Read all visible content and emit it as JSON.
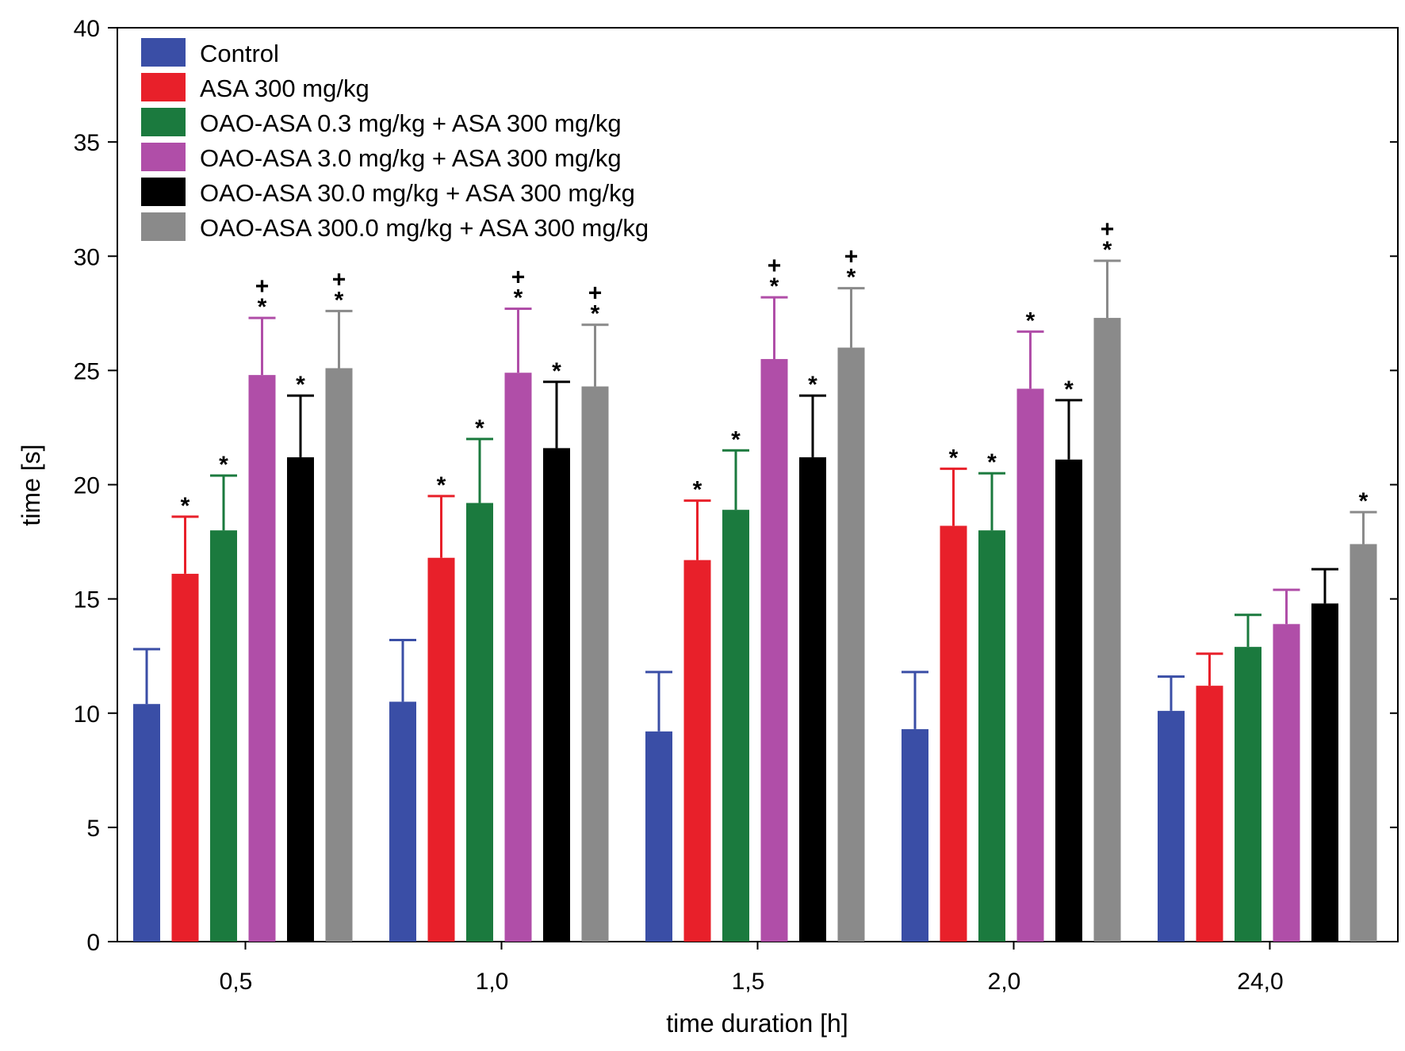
{
  "chart_data": {
    "type": "bar",
    "title": "",
    "xlabel": "time duration [h]",
    "ylabel": "time [s]",
    "ylim": [
      0,
      40
    ],
    "yticks": [
      0,
      5,
      10,
      15,
      20,
      25,
      30,
      35,
      40
    ],
    "categories": [
      "0,5",
      "1,0",
      "1,5",
      "2,0",
      "24,0"
    ],
    "legend_position": "top-left",
    "series": [
      {
        "name": "Control",
        "color": "#3a4ea6",
        "values": [
          10.4,
          10.5,
          9.2,
          9.3,
          10.1
        ],
        "errors": [
          2.4,
          2.7,
          2.6,
          2.5,
          1.5
        ],
        "markers": [
          "",
          "",
          "",
          "",
          ""
        ]
      },
      {
        "name": "ASA 300 mg/kg",
        "color": "#e8202a",
        "values": [
          16.1,
          16.8,
          16.7,
          18.2,
          11.2
        ],
        "errors": [
          2.5,
          2.7,
          2.6,
          2.5,
          1.4
        ],
        "markers": [
          "*",
          "*",
          "*",
          "*",
          ""
        ]
      },
      {
        "name": "OAO-ASA 0.3 mg/kg + ASA 300 mg/kg",
        "color": "#1b7a3e",
        "values": [
          18.0,
          19.2,
          18.9,
          18.0,
          12.9
        ],
        "errors": [
          2.4,
          2.8,
          2.6,
          2.5,
          1.4
        ],
        "markers": [
          "*",
          "*",
          "*",
          "*",
          ""
        ]
      },
      {
        "name": "OAO-ASA 3.0 mg/kg + ASA 300 mg/kg",
        "color": "#b04ea8",
        "values": [
          24.8,
          24.9,
          25.5,
          24.2,
          13.9
        ],
        "errors": [
          2.5,
          2.8,
          2.7,
          2.5,
          1.5
        ],
        "markers": [
          "+*",
          "+*",
          "+*",
          "*",
          ""
        ]
      },
      {
        "name": "OAO-ASA 30.0 mg/kg + ASA 300 mg/kg",
        "color": "#000000",
        "values": [
          21.2,
          21.6,
          21.2,
          21.1,
          14.8
        ],
        "errors": [
          2.7,
          2.9,
          2.7,
          2.6,
          1.5
        ],
        "markers": [
          "*",
          "*",
          "*",
          "*",
          ""
        ]
      },
      {
        "name": "OAO-ASA 300.0 mg/kg + ASA 300 mg/kg",
        "color": "#8a8a8a",
        "values": [
          25.1,
          24.3,
          26.0,
          27.3,
          17.4
        ],
        "errors": [
          2.5,
          2.7,
          2.6,
          2.5,
          1.4
        ],
        "markers": [
          "+*",
          "+*",
          "+*",
          "+*",
          "*"
        ]
      }
    ]
  }
}
